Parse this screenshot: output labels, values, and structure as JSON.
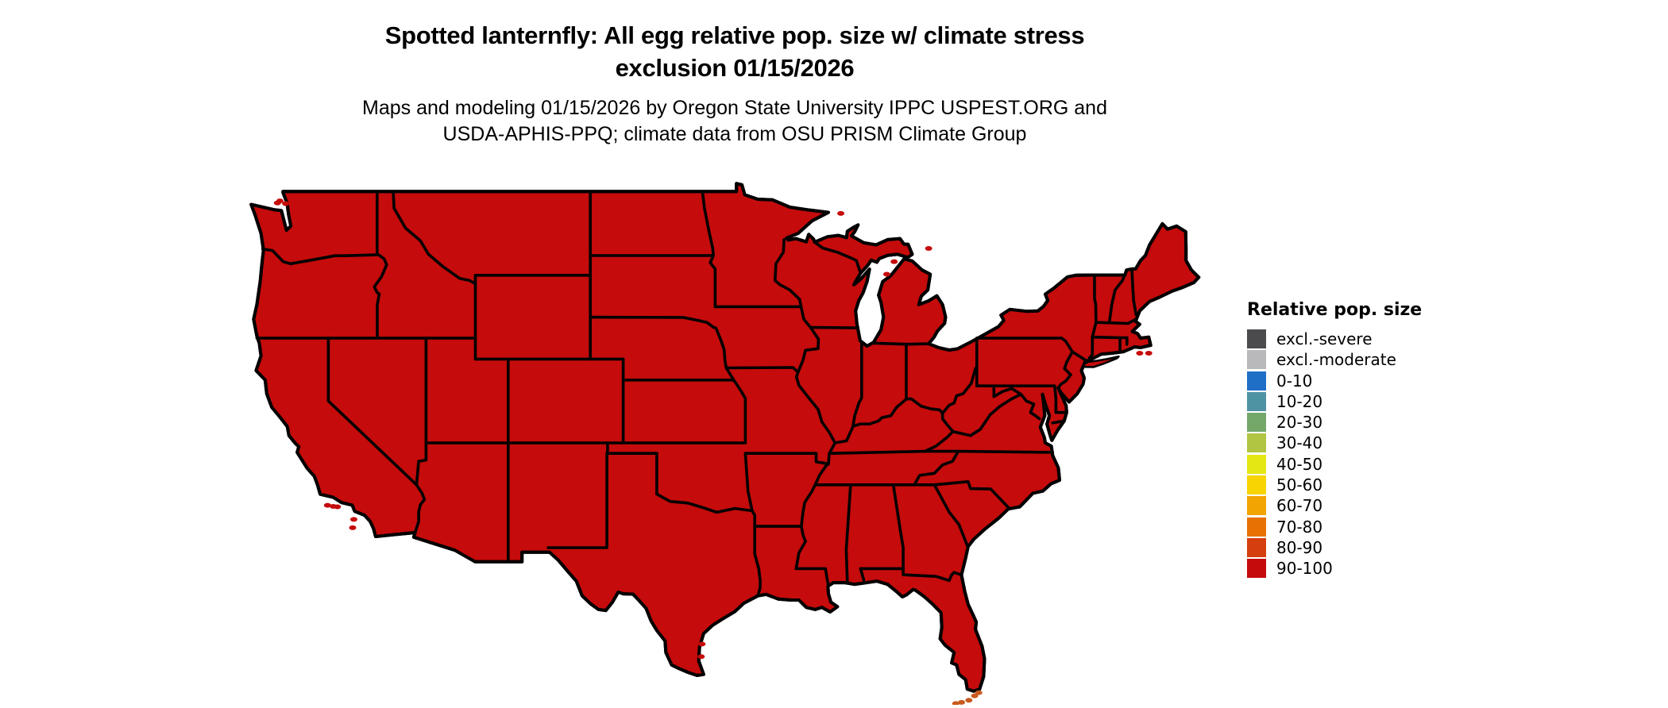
{
  "title": {
    "line1": "Spotted lanternfly: All egg relative pop. size w/ climate stress",
    "line2": "exclusion 01/15/2026"
  },
  "subtitle": {
    "line1": "Maps and modeling 01/15/2026 by Oregon State University IPPC USPEST.ORG and",
    "line2": "USDA-APHIS-PPQ; climate data from OSU PRISM Climate Group"
  },
  "legend": {
    "title": "Relative pop. size",
    "items": [
      {
        "label": "excl.-severe",
        "color": "#4b4b4d"
      },
      {
        "label": "excl.-moderate",
        "color": "#b9b9bb"
      },
      {
        "label": "0-10",
        "color": "#1e6fc5"
      },
      {
        "label": "10-20",
        "color": "#4e93a3"
      },
      {
        "label": "20-30",
        "color": "#73a869"
      },
      {
        "label": "30-40",
        "color": "#b1c542"
      },
      {
        "label": "40-50",
        "color": "#e5e714"
      },
      {
        "label": "50-60",
        "color": "#f8d402"
      },
      {
        "label": "60-70",
        "color": "#f2a403"
      },
      {
        "label": "70-80",
        "color": "#e77103"
      },
      {
        "label": "80-90",
        "color": "#d53e0d"
      },
      {
        "label": "90-100",
        "color": "#c50b0b"
      }
    ]
  },
  "map": {
    "description": "Continental United States; every state shaded in the 90-100 relative population size class",
    "all_states_class": "90-100",
    "fill_color": "#c50b0b",
    "border_color": "#000000",
    "background_color": "#ffffff",
    "keys_color": "#c85a1e"
  }
}
